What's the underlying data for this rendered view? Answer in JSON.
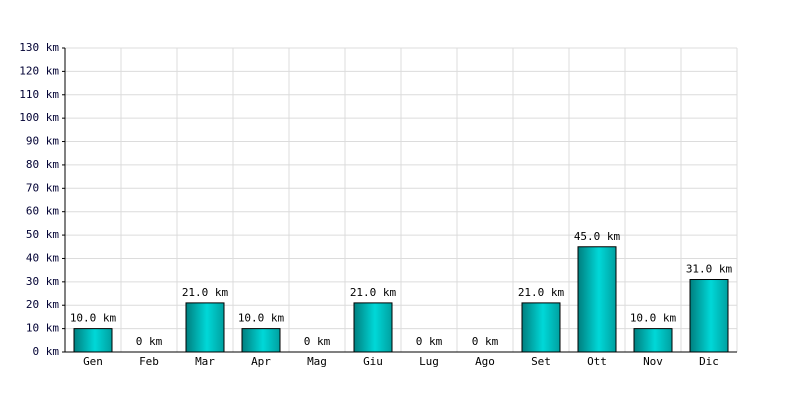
{
  "chart_data": {
    "type": "bar",
    "categories": [
      "Gen",
      "Feb",
      "Mar",
      "Apr",
      "Mag",
      "Giu",
      "Lug",
      "Ago",
      "Set",
      "Ott",
      "Nov",
      "Dic"
    ],
    "values": [
      10,
      0,
      21,
      10,
      0,
      21,
      0,
      0,
      21,
      45,
      10,
      31
    ],
    "value_labels": [
      "10.0 km",
      "0 km",
      "21.0 km",
      "10.0 km",
      "0 km",
      "21.0 km",
      "0 km",
      "0 km",
      "21.0 km",
      "45.0 km",
      "10.0 km",
      "31.0 km"
    ],
    "color": "#00d8d8",
    "ylim": [
      0,
      130
    ],
    "yticks": [
      {
        "value": 0,
        "label": "0 km"
      },
      {
        "value": 10,
        "label": "10 km"
      },
      {
        "value": 20,
        "label": "20 km"
      },
      {
        "value": 30,
        "label": "30 km"
      },
      {
        "value": 40,
        "label": "40 km"
      },
      {
        "value": 50,
        "label": "50 km"
      },
      {
        "value": 60,
        "label": "60 km"
      },
      {
        "value": 70,
        "label": "70 km"
      },
      {
        "value": 80,
        "label": "80 km"
      },
      {
        "value": 90,
        "label": "90 km"
      },
      {
        "value": 100,
        "label": "100 km"
      },
      {
        "value": 110,
        "label": "110 km"
      },
      {
        "value": 120,
        "label": "120 km"
      },
      {
        "value": 130,
        "label": "130 km"
      }
    ],
    "grid": true
  }
}
